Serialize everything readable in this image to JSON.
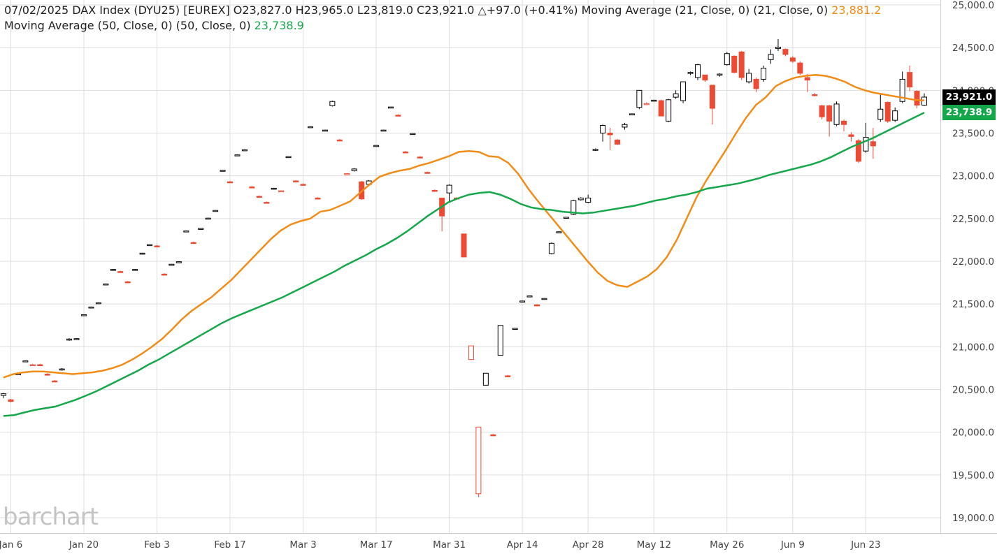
{
  "header": {
    "date": "07/02/2025",
    "instrument": "DAX Index (DYU25) [EUREX]",
    "open": "O23,827.0",
    "high": "H23,965.0",
    "low": "L23,819.0",
    "close": "C23,921.0",
    "change": "△+97.0 (+0.41%)",
    "ma21_label": "Moving Average (21, Close, 0)",
    "ma21_params": "(21, Close, 0)",
    "ma21_value": "23,881.2",
    "ma50_label": "Moving Average (50, Close, 0)",
    "ma50_params": "(50, Close, 0)",
    "ma50_value": "23,738.9"
  },
  "logo_text": "barchart",
  "price_tags": {
    "last": "23,921.0",
    "ma50": "23,738.9"
  },
  "colors": {
    "up": "#000000",
    "down": "#ee4a33",
    "ma21": "#f28c17",
    "ma50": "#15a84a",
    "grid": "#dddddd"
  },
  "chart_data": {
    "type": "candlestick",
    "title": "DAX Index (DYU25) [EUREX]",
    "ylim": [
      18850,
      25000
    ],
    "y_ticks": [
      "25,000.0",
      "24,500.0",
      "24,000.0",
      "23,500.0",
      "23,000.0",
      "22,500.0",
      "22,000.0",
      "21,500.0",
      "21,000.0",
      "20,500.0",
      "20,000.0",
      "19,500.0",
      "19,000.0"
    ],
    "x_ticks": [
      "Jan 6",
      "Jan 20",
      "Feb 3",
      "Feb 17",
      "Mar 3",
      "Mar 17",
      "Mar 31",
      "Apr 14",
      "Apr 28",
      "May 12",
      "May 26",
      "Jun 9",
      "Jun 23"
    ],
    "candles": [
      {
        "date": "2025-01-03",
        "o": 20430,
        "h": 20460,
        "l": 20400,
        "c": 20450
      },
      {
        "date": "2025-01-06",
        "o": 20380,
        "h": 20390,
        "l": 20350,
        "c": 20360
      },
      {
        "date": "2025-01-07",
        "o": 20680,
        "h": 20690,
        "l": 20670,
        "c": 20685
      },
      {
        "date": "2025-01-08",
        "o": 20830,
        "h": 20840,
        "l": 20820,
        "c": 20835
      },
      {
        "date": "2025-01-09",
        "o": 20790,
        "h": 20800,
        "l": 20780,
        "c": 20790
      },
      {
        "date": "2025-01-10",
        "o": 20790,
        "h": 20800,
        "l": 20780,
        "c": 20785
      },
      {
        "date": "2025-01-13",
        "o": 20680,
        "h": 20690,
        "l": 20660,
        "c": 20670
      },
      {
        "date": "2025-01-14",
        "o": 20600,
        "h": 20610,
        "l": 20590,
        "c": 20595
      },
      {
        "date": "2025-01-15",
        "o": 20730,
        "h": 20750,
        "l": 20720,
        "c": 20740
      },
      {
        "date": "2025-01-16",
        "o": 21080,
        "h": 21100,
        "l": 21070,
        "c": 21090
      },
      {
        "date": "2025-01-17",
        "o": 21090,
        "h": 21100,
        "l": 21080,
        "c": 21095
      },
      {
        "date": "2025-01-20",
        "o": 21370,
        "h": 21380,
        "l": 21360,
        "c": 21375
      },
      {
        "date": "2025-01-21",
        "o": 21460,
        "h": 21470,
        "l": 21450,
        "c": 21465
      },
      {
        "date": "2025-01-22",
        "o": 21510,
        "h": 21520,
        "l": 21500,
        "c": 21515
      },
      {
        "date": "2025-01-23",
        "o": 21730,
        "h": 21740,
        "l": 21720,
        "c": 21735
      },
      {
        "date": "2025-01-24",
        "o": 21900,
        "h": 21910,
        "l": 21890,
        "c": 21905
      },
      {
        "date": "2025-01-27",
        "o": 21880,
        "h": 21890,
        "l": 21870,
        "c": 21875
      },
      {
        "date": "2025-01-28",
        "o": 21760,
        "h": 21770,
        "l": 21750,
        "c": 21755
      },
      {
        "date": "2025-01-29",
        "o": 21900,
        "h": 21910,
        "l": 21890,
        "c": 21905
      },
      {
        "date": "2025-01-30",
        "o": 22090,
        "h": 22100,
        "l": 22080,
        "c": 22095
      },
      {
        "date": "2025-01-31",
        "o": 22190,
        "h": 22200,
        "l": 22180,
        "c": 22195
      },
      {
        "date": "2025-02-03",
        "o": 22180,
        "h": 22190,
        "l": 22170,
        "c": 22175
      },
      {
        "date": "2025-02-04",
        "o": 21850,
        "h": 21860,
        "l": 21840,
        "c": 21845
      },
      {
        "date": "2025-02-05",
        "o": 21960,
        "h": 21970,
        "l": 21950,
        "c": 21965
      },
      {
        "date": "2025-02-06",
        "o": 21990,
        "h": 22000,
        "l": 21980,
        "c": 21995
      },
      {
        "date": "2025-02-07",
        "o": 22350,
        "h": 22360,
        "l": 22340,
        "c": 22355
      },
      {
        "date": "2025-02-10",
        "o": 22220,
        "h": 22230,
        "l": 22210,
        "c": 22215
      },
      {
        "date": "2025-02-11",
        "o": 22380,
        "h": 22390,
        "l": 22370,
        "c": 22385
      },
      {
        "date": "2025-02-12",
        "o": 22500,
        "h": 22510,
        "l": 22490,
        "c": 22505
      },
      {
        "date": "2025-02-13",
        "o": 22590,
        "h": 22600,
        "l": 22580,
        "c": 22595
      },
      {
        "date": "2025-02-14",
        "o": 23060,
        "h": 23070,
        "l": 23050,
        "c": 23065
      },
      {
        "date": "2025-02-17",
        "o": 22930,
        "h": 22940,
        "l": 22920,
        "c": 22925
      },
      {
        "date": "2025-02-18",
        "o": 23240,
        "h": 23250,
        "l": 23230,
        "c": 23245
      },
      {
        "date": "2025-02-19",
        "o": 23300,
        "h": 23310,
        "l": 23290,
        "c": 23305
      },
      {
        "date": "2025-02-20",
        "o": 22870,
        "h": 22880,
        "l": 22860,
        "c": 22865
      },
      {
        "date": "2025-02-21",
        "o": 22760,
        "h": 22770,
        "l": 22750,
        "c": 22755
      },
      {
        "date": "2025-02-24",
        "o": 22690,
        "h": 22700,
        "l": 22680,
        "c": 22685
      },
      {
        "date": "2025-02-25",
        "o": 22850,
        "h": 22860,
        "l": 22840,
        "c": 22855
      },
      {
        "date": "2025-02-26",
        "o": 22820,
        "h": 22830,
        "l": 22810,
        "c": 22825
      },
      {
        "date": "2025-02-27",
        "o": 23220,
        "h": 23230,
        "l": 23210,
        "c": 23225
      },
      {
        "date": "2025-02-28",
        "o": 22940,
        "h": 22950,
        "l": 22930,
        "c": 22935
      },
      {
        "date": "2025-03-03",
        "o": 22900,
        "h": 22910,
        "l": 22890,
        "c": 22895
      },
      {
        "date": "2025-03-04",
        "o": 23570,
        "h": 23580,
        "l": 23560,
        "c": 23575
      },
      {
        "date": "2025-03-05",
        "o": 22740,
        "h": 22750,
        "l": 22730,
        "c": 22735
      },
      {
        "date": "2025-03-06",
        "o": 23530,
        "h": 23540,
        "l": 23520,
        "c": 23535
      },
      {
        "date": "2025-03-07",
        "o": 23820,
        "h": 23880,
        "l": 23810,
        "c": 23870
      },
      {
        "date": "2025-03-10",
        "o": 23420,
        "h": 23430,
        "l": 23410,
        "c": 23415
      },
      {
        "date": "2025-03-11",
        "o": 23020,
        "h": 23030,
        "l": 23010,
        "c": 23025
      },
      {
        "date": "2025-03-12",
        "o": 23060,
        "h": 23090,
        "l": 23050,
        "c": 23080
      },
      {
        "date": "2025-03-13",
        "o": 22930,
        "h": 22940,
        "l": 22720,
        "c": 22730
      },
      {
        "date": "2025-03-14",
        "o": 22900,
        "h": 22950,
        "l": 22890,
        "c": 22940
      },
      {
        "date": "2025-03-17",
        "o": 23350,
        "h": 23360,
        "l": 23340,
        "c": 23355
      },
      {
        "date": "2025-03-18",
        "o": 23530,
        "h": 23540,
        "l": 23520,
        "c": 23535
      },
      {
        "date": "2025-03-19",
        "o": 23800,
        "h": 23810,
        "l": 23790,
        "c": 23805
      },
      {
        "date": "2025-03-20",
        "o": 23710,
        "h": 23720,
        "l": 23700,
        "c": 23705
      },
      {
        "date": "2025-03-21",
        "o": 23280,
        "h": 23290,
        "l": 23270,
        "c": 23275
      },
      {
        "date": "2025-03-24",
        "o": 23490,
        "h": 23500,
        "l": 23480,
        "c": 23495
      },
      {
        "date": "2025-03-25",
        "o": 23220,
        "h": 23230,
        "l": 23210,
        "c": 23215
      },
      {
        "date": "2025-03-26",
        "o": 23040,
        "h": 23050,
        "l": 23030,
        "c": 23035
      },
      {
        "date": "2025-03-27",
        "o": 22830,
        "h": 22840,
        "l": 22820,
        "c": 22825
      },
      {
        "date": "2025-03-28",
        "o": 22740,
        "h": 22740,
        "l": 22350,
        "c": 22530
      },
      {
        "date": "2025-03-31",
        "o": 22800,
        "h": 22900,
        "l": 22700,
        "c": 22890
      },
      {
        "date": "2025-04-01",
        "o": 22740,
        "h": 22750,
        "l": 22730,
        "c": 22735
      },
      {
        "date": "2025-04-02",
        "o": 22320,
        "h": 22320,
        "l": 22050,
        "c": 22050
      },
      {
        "date": "2025-04-03",
        "o": 20850,
        "h": 21010,
        "l": 20850,
        "c": 21010
      },
      {
        "date": "2025-04-04",
        "o": 19280,
        "h": 20060,
        "l": 19240,
        "c": 20060
      },
      {
        "date": "2025-04-07",
        "o": 20550,
        "h": 20690,
        "l": 20550,
        "c": 20690
      },
      {
        "date": "2025-04-08",
        "o": 19970,
        "h": 19980,
        "l": 19960,
        "c": 19965
      },
      {
        "date": "2025-04-09",
        "o": 20900,
        "h": 21250,
        "l": 20900,
        "c": 21250
      },
      {
        "date": "2025-04-10",
        "o": 20660,
        "h": 20670,
        "l": 20650,
        "c": 20655
      },
      {
        "date": "2025-04-11",
        "o": 21210,
        "h": 21220,
        "l": 21200,
        "c": 21215
      },
      {
        "date": "2025-04-14",
        "o": 21530,
        "h": 21540,
        "l": 21520,
        "c": 21535
      },
      {
        "date": "2025-04-15",
        "o": 21590,
        "h": 21600,
        "l": 21580,
        "c": 21595
      },
      {
        "date": "2025-04-16",
        "o": 21490,
        "h": 21500,
        "l": 21480,
        "c": 21485
      },
      {
        "date": "2025-04-17",
        "o": 21560,
        "h": 21570,
        "l": 21550,
        "c": 21565
      },
      {
        "date": "2025-04-22",
        "o": 22090,
        "h": 22220,
        "l": 22080,
        "c": 22210
      },
      {
        "date": "2025-04-23",
        "o": 22340,
        "h": 22350,
        "l": 22330,
        "c": 22345
      },
      {
        "date": "2025-04-24",
        "o": 22510,
        "h": 22520,
        "l": 22500,
        "c": 22515
      },
      {
        "date": "2025-04-25",
        "o": 22550,
        "h": 22720,
        "l": 22540,
        "c": 22710
      },
      {
        "date": "2025-04-28",
        "o": 22720,
        "h": 22750,
        "l": 22710,
        "c": 22740
      },
      {
        "date": "2025-04-29",
        "o": 22690,
        "h": 22780,
        "l": 22680,
        "c": 22740
      },
      {
        "date": "2025-04-30",
        "o": 23300,
        "h": 23320,
        "l": 23290,
        "c": 23310
      },
      {
        "date": "2025-05-02",
        "o": 23500,
        "h": 23600,
        "l": 23400,
        "c": 23590
      },
      {
        "date": "2025-05-05",
        "o": 23500,
        "h": 23560,
        "l": 23300,
        "c": 23480
      },
      {
        "date": "2025-05-06",
        "o": 23420,
        "h": 23430,
        "l": 23360,
        "c": 23370
      },
      {
        "date": "2025-05-07",
        "o": 23570,
        "h": 23620,
        "l": 23540,
        "c": 23600
      },
      {
        "date": "2025-05-08",
        "o": 23720,
        "h": 23730,
        "l": 23710,
        "c": 23725
      },
      {
        "date": "2025-05-09",
        "o": 23800,
        "h": 24000,
        "l": 23780,
        "c": 24000
      },
      {
        "date": "2025-05-12",
        "o": 23840,
        "h": 23860,
        "l": 23830,
        "c": 23845
      },
      {
        "date": "2025-05-13",
        "o": 23880,
        "h": 23890,
        "l": 23870,
        "c": 23885
      },
      {
        "date": "2025-05-14",
        "o": 23880,
        "h": 23890,
        "l": 23700,
        "c": 23700
      },
      {
        "date": "2025-05-15",
        "o": 23640,
        "h": 23900,
        "l": 23630,
        "c": 23890
      },
      {
        "date": "2025-05-16",
        "o": 23920,
        "h": 24000,
        "l": 23900,
        "c": 23960
      },
      {
        "date": "2025-05-19",
        "o": 23880,
        "h": 24100,
        "l": 23850,
        "c": 24100
      },
      {
        "date": "2025-05-20",
        "o": 24200,
        "h": 24220,
        "l": 24180,
        "c": 24210
      },
      {
        "date": "2025-05-21",
        "o": 24150,
        "h": 24310,
        "l": 24120,
        "c": 24300
      },
      {
        "date": "2025-05-22",
        "o": 24180,
        "h": 24180,
        "l": 24100,
        "c": 24120
      },
      {
        "date": "2025-05-23",
        "o": 24060,
        "h": 24060,
        "l": 23600,
        "c": 23790
      },
      {
        "date": "2025-05-26",
        "o": 24180,
        "h": 24200,
        "l": 24160,
        "c": 24190
      },
      {
        "date": "2025-05-27",
        "o": 24300,
        "h": 24450,
        "l": 24290,
        "c": 24430
      },
      {
        "date": "2025-05-28",
        "o": 24400,
        "h": 24410,
        "l": 24200,
        "c": 24210
      },
      {
        "date": "2025-05-29",
        "o": 24450,
        "h": 24460,
        "l": 24120,
        "c": 24150
      },
      {
        "date": "2025-05-30",
        "o": 24100,
        "h": 24250,
        "l": 24080,
        "c": 24200
      },
      {
        "date": "2025-06-02",
        "o": 24130,
        "h": 24150,
        "l": 23980,
        "c": 24020
      },
      {
        "date": "2025-06-03",
        "o": 24130,
        "h": 24290,
        "l": 24100,
        "c": 24260
      },
      {
        "date": "2025-06-04",
        "o": 24360,
        "h": 24480,
        "l": 24310,
        "c": 24420
      },
      {
        "date": "2025-06-05",
        "o": 24490,
        "h": 24600,
        "l": 24460,
        "c": 24505
      },
      {
        "date": "2025-06-06",
        "o": 24480,
        "h": 24490,
        "l": 24400,
        "c": 24420
      },
      {
        "date": "2025-06-09",
        "o": 24380,
        "h": 24400,
        "l": 24320,
        "c": 24340
      },
      {
        "date": "2025-06-10",
        "o": 24320,
        "h": 24340,
        "l": 24180,
        "c": 24200
      },
      {
        "date": "2025-06-11",
        "o": 24150,
        "h": 24190,
        "l": 23980,
        "c": 24120
      },
      {
        "date": "2025-06-12",
        "o": 23950,
        "h": 23970,
        "l": 23930,
        "c": 23940
      },
      {
        "date": "2025-06-13",
        "o": 23820,
        "h": 23830,
        "l": 23660,
        "c": 23690
      },
      {
        "date": "2025-06-16",
        "o": 23820,
        "h": 23830,
        "l": 23460,
        "c": 23640
      },
      {
        "date": "2025-06-17",
        "o": 23600,
        "h": 23870,
        "l": 23580,
        "c": 23840
      },
      {
        "date": "2025-06-18",
        "o": 23640,
        "h": 23660,
        "l": 23520,
        "c": 23600
      },
      {
        "date": "2025-06-19",
        "o": 23480,
        "h": 23510,
        "l": 23400,
        "c": 23460
      },
      {
        "date": "2025-06-20",
        "o": 23410,
        "h": 23430,
        "l": 23150,
        "c": 23170
      },
      {
        "date": "2025-06-23",
        "o": 23290,
        "h": 23620,
        "l": 23270,
        "c": 23450
      },
      {
        "date": "2025-06-24",
        "o": 23400,
        "h": 23560,
        "l": 23200,
        "c": 23350
      },
      {
        "date": "2025-06-25",
        "o": 23660,
        "h": 23950,
        "l": 23630,
        "c": 23780
      },
      {
        "date": "2025-06-26",
        "o": 23860,
        "h": 23870,
        "l": 23620,
        "c": 23640
      },
      {
        "date": "2025-06-27",
        "o": 23650,
        "h": 23800,
        "l": 23630,
        "c": 23760
      },
      {
        "date": "2025-06-30",
        "o": 23870,
        "h": 24220,
        "l": 23850,
        "c": 24130
      },
      {
        "date": "2025-07-01",
        "o": 24210,
        "h": 24290,
        "l": 23990,
        "c": 24040
      },
      {
        "date": "2025-07-02",
        "o": 23990,
        "h": 24000,
        "l": 23790,
        "c": 23827
      },
      {
        "date": "2025-07-02b",
        "o": 23827,
        "h": 23965,
        "l": 23819,
        "c": 23921
      }
    ],
    "ma21": [
      20640,
      20680,
      20700,
      20710,
      20710,
      20700,
      20690,
      20680,
      20690,
      20700,
      20720,
      20750,
      20790,
      20850,
      20920,
      21000,
      21090,
      21200,
      21320,
      21420,
      21500,
      21580,
      21680,
      21780,
      21900,
      22020,
      22140,
      22260,
      22360,
      22430,
      22470,
      22500,
      22580,
      22600,
      22650,
      22700,
      22800,
      22900,
      22990,
      23030,
      23060,
      23080,
      23120,
      23150,
      23190,
      23230,
      23280,
      23290,
      23280,
      23230,
      23220,
      23150,
      23020,
      22850,
      22700,
      22560,
      22420,
      22280,
      22140,
      22000,
      21870,
      21770,
      21720,
      21700,
      21760,
      21820,
      21910,
      22050,
      22250,
      22500,
      22750,
      22950,
      23130,
      23310,
      23500,
      23680,
      23830,
      23920,
      24050,
      24110,
      24150,
      24170,
      24180,
      24170,
      24140,
      24100,
      24040,
      24000,
      23970,
      23950,
      23930,
      23910,
      23890,
      23881.2
    ],
    "ma50": [
      20190,
      20200,
      20230,
      20260,
      20280,
      20300,
      20340,
      20380,
      20430,
      20480,
      20540,
      20600,
      20660,
      20720,
      20790,
      20850,
      20920,
      20990,
      21060,
      21130,
      21200,
      21270,
      21330,
      21380,
      21430,
      21480,
      21530,
      21580,
      21640,
      21700,
      21760,
      21820,
      21880,
      21950,
      22010,
      22070,
      22140,
      22200,
      22270,
      22350,
      22440,
      22530,
      22610,
      22690,
      22740,
      22780,
      22800,
      22810,
      22780,
      22730,
      22670,
      22630,
      22610,
      22600,
      22580,
      22570,
      22560,
      22570,
      22590,
      22610,
      22630,
      22650,
      22680,
      22710,
      22730,
      22760,
      22780,
      22810,
      22850,
      22870,
      22890,
      22910,
      22940,
      22970,
      23010,
      23040,
      23070,
      23100,
      23130,
      23170,
      23220,
      23280,
      23340,
      23390,
      23440,
      23500,
      23560,
      23620,
      23680,
      23738.9
    ],
    "last_close": 23921.0
  }
}
